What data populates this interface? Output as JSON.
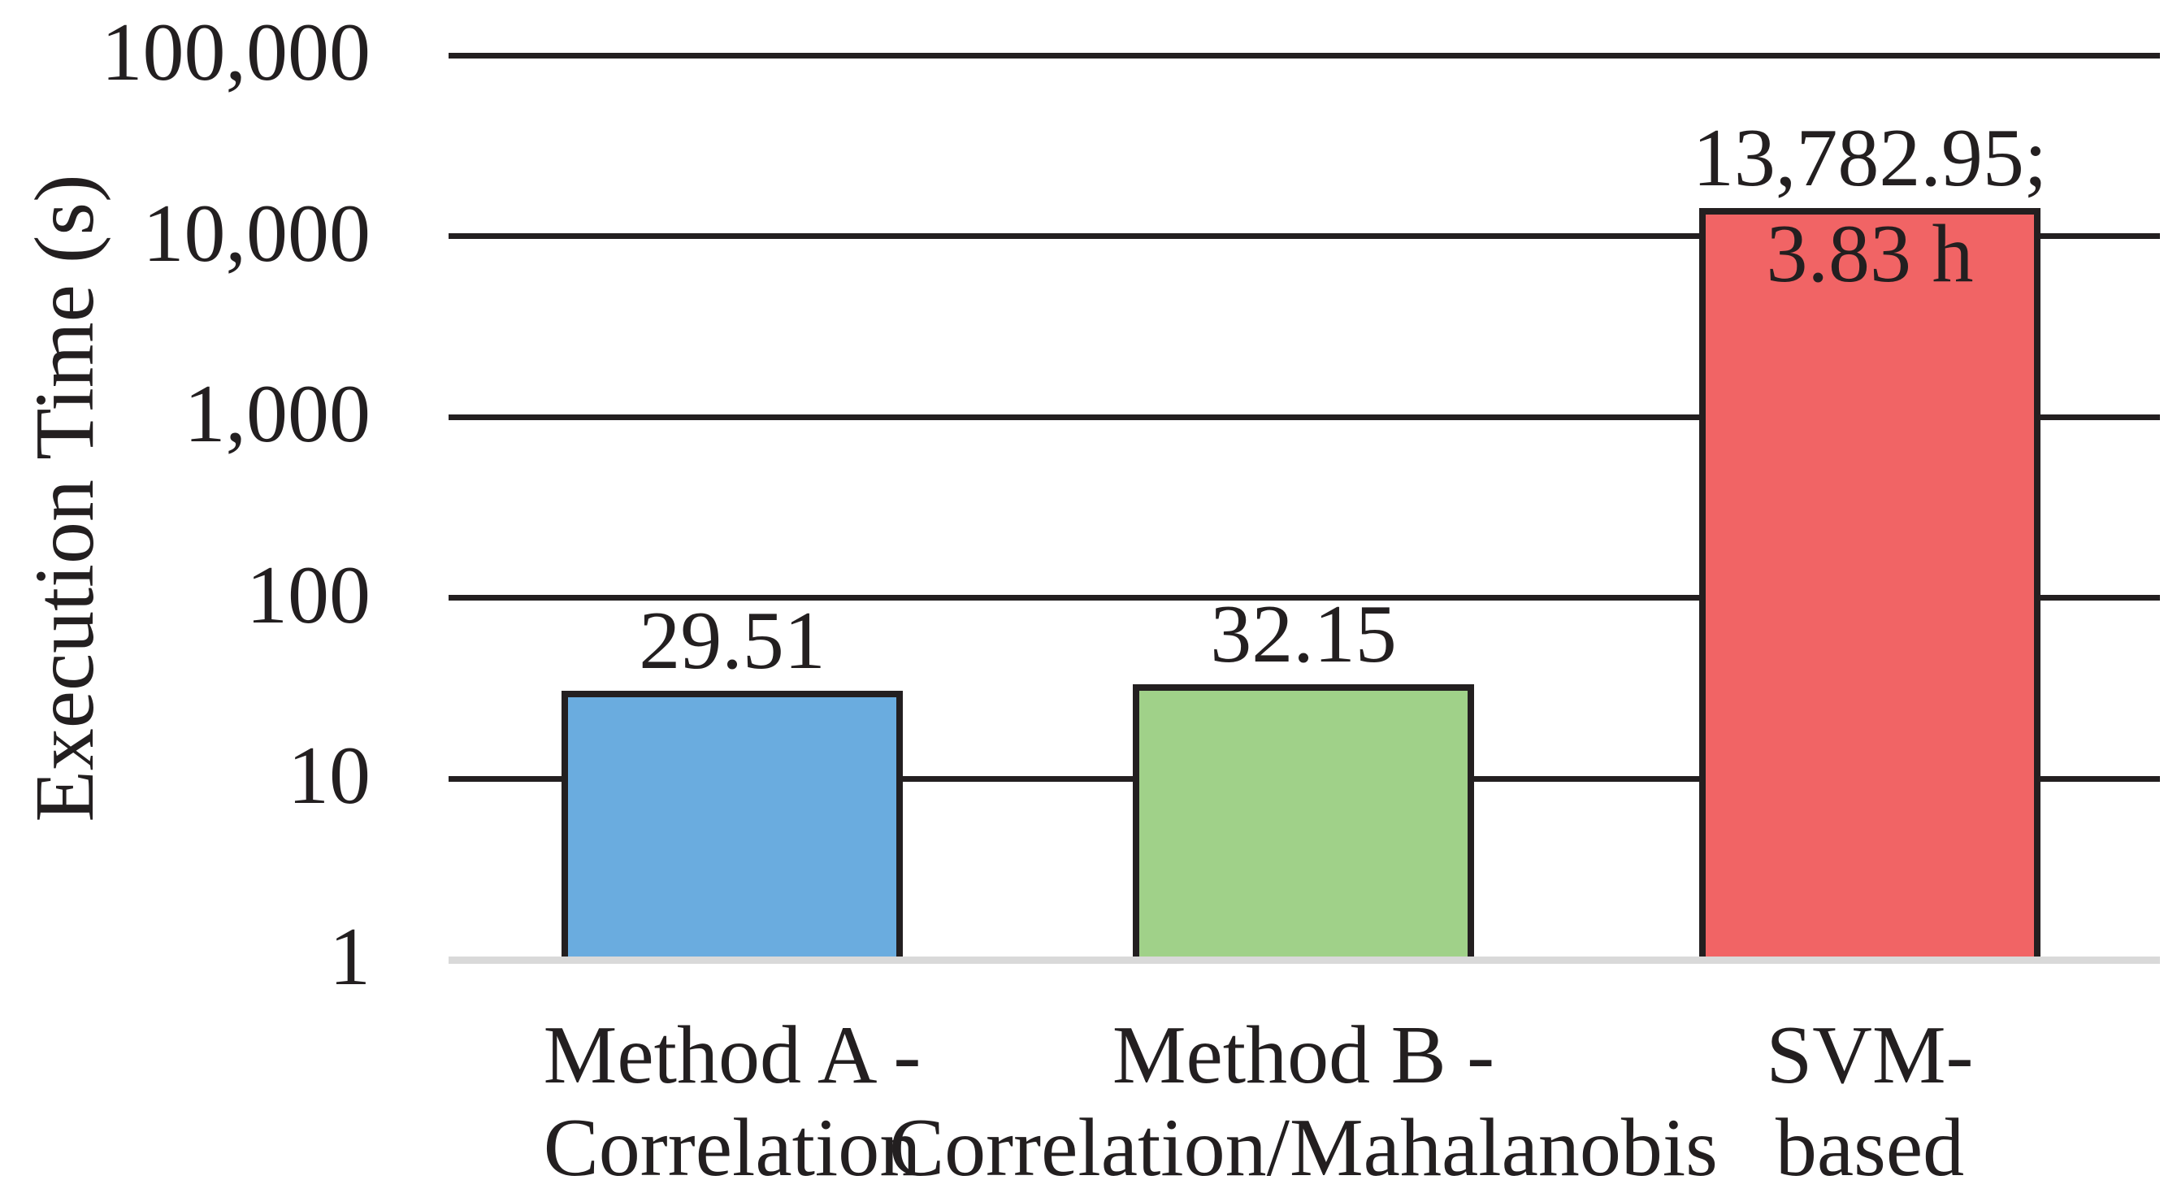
{
  "chart_data": {
    "type": "bar",
    "title": "",
    "ylabel": "Execution Time (s)",
    "xlabel": "",
    "yscale": "log",
    "ylim": [
      1,
      100000
    ],
    "grid": true,
    "legend": false,
    "yticks": [
      {
        "value": 1,
        "label": "1"
      },
      {
        "value": 10,
        "label": "10"
      },
      {
        "value": 100,
        "label": "100"
      },
      {
        "value": 1000,
        "label": "1,000"
      },
      {
        "value": 10000,
        "label": "10,000"
      },
      {
        "value": 100000,
        "label": "100,000"
      }
    ],
    "categories": [
      "Method A -\nCorrelation",
      "Method B -\nCorrelation/Mahalanobis",
      "SVM-based"
    ],
    "values": [
      29.51,
      32.15,
      13782.95
    ],
    "bars": [
      {
        "name": "method-a-correlation",
        "category": "Method A -\nCorrelation",
        "value": 29.51,
        "data_label": "29.51",
        "inner_label": "",
        "color": "#6AACDF"
      },
      {
        "name": "method-b-correlation-mahalanobis",
        "category": "Method B -\nCorrelation/Mahalanobis",
        "value": 32.15,
        "data_label": "32.15",
        "inner_label": "",
        "color": "#A0D189"
      },
      {
        "name": "svm-based",
        "category": "SVM-based",
        "value": 13782.95,
        "data_label": "13,782.95;",
        "inner_label": "3.83 h",
        "color": "#F16465"
      }
    ],
    "colors": {
      "gridline": "#231F20",
      "axis_baseline": "#D9D9D9",
      "text": "#231F20"
    }
  }
}
